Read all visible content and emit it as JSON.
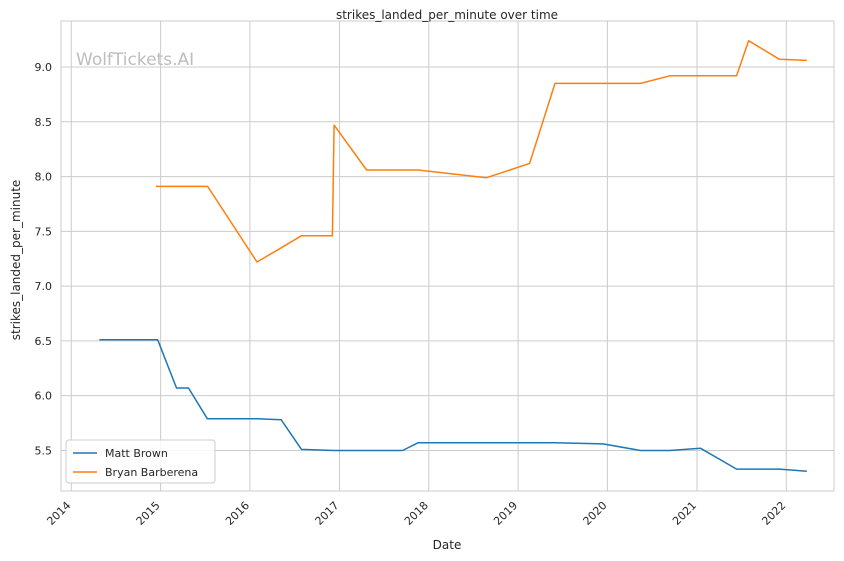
{
  "watermark": "WolfTickets.AI",
  "chart_data": {
    "type": "line",
    "title": "strikes_landed_per_minute over time",
    "xlabel": "Date",
    "ylabel": "strikes_landed_per_minute",
    "xlim": [
      "2013-11-20",
      "2022-07-15"
    ],
    "ylim": [
      5.13,
      9.42
    ],
    "x_ticks": [
      "2014",
      "2015",
      "2016",
      "2017",
      "2018",
      "2019",
      "2020",
      "2021",
      "2022"
    ],
    "y_ticks": [
      "5.5",
      "6.0",
      "6.5",
      "7.0",
      "7.5",
      "8.0",
      "8.5",
      "9.0"
    ],
    "grid": true,
    "legend_position": "lower-left",
    "series": [
      {
        "name": "Matt Brown",
        "color": "#1f77b4",
        "points": [
          [
            "2014-04-26",
            6.51
          ],
          [
            "2014-12-20",
            6.51
          ],
          [
            "2015-03-07",
            6.07
          ],
          [
            "2015-04-25",
            6.07
          ],
          [
            "2015-07-11",
            5.79
          ],
          [
            "2016-01-30",
            5.79
          ],
          [
            "2016-05-08",
            5.78
          ],
          [
            "2016-07-30",
            5.51
          ],
          [
            "2016-12-10",
            5.5
          ],
          [
            "2017-09-16",
            5.5
          ],
          [
            "2017-11-18",
            5.57
          ],
          [
            "2019-06-01",
            5.57
          ],
          [
            "2019-12-14",
            5.56
          ],
          [
            "2020-05-16",
            5.5
          ],
          [
            "2020-09-12",
            5.5
          ],
          [
            "2021-01-16",
            5.52
          ],
          [
            "2021-06-12",
            5.33
          ],
          [
            "2021-12-04",
            5.33
          ],
          [
            "2022-03-26",
            5.31
          ]
        ]
      },
      {
        "name": "Bryan Barberena",
        "color": "#ff7f0e",
        "points": [
          [
            "2014-12-13",
            7.91
          ],
          [
            "2015-07-12",
            7.91
          ],
          [
            "2016-01-30",
            7.22
          ],
          [
            "2016-05-08",
            7.35
          ],
          [
            "2016-07-30",
            7.46
          ],
          [
            "2016-12-03",
            7.46
          ],
          [
            "2016-12-10",
            8.47
          ],
          [
            "2017-04-22",
            8.06
          ],
          [
            "2017-11-18",
            8.06
          ],
          [
            "2018-08-25",
            7.99
          ],
          [
            "2019-02-17",
            8.12
          ],
          [
            "2019-06-01",
            8.85
          ],
          [
            "2020-05-16",
            8.85
          ],
          [
            "2020-09-12",
            8.92
          ],
          [
            "2021-06-12",
            8.92
          ],
          [
            "2021-07-31",
            9.24
          ],
          [
            "2021-12-04",
            9.07
          ],
          [
            "2022-03-26",
            9.06
          ]
        ]
      }
    ]
  }
}
